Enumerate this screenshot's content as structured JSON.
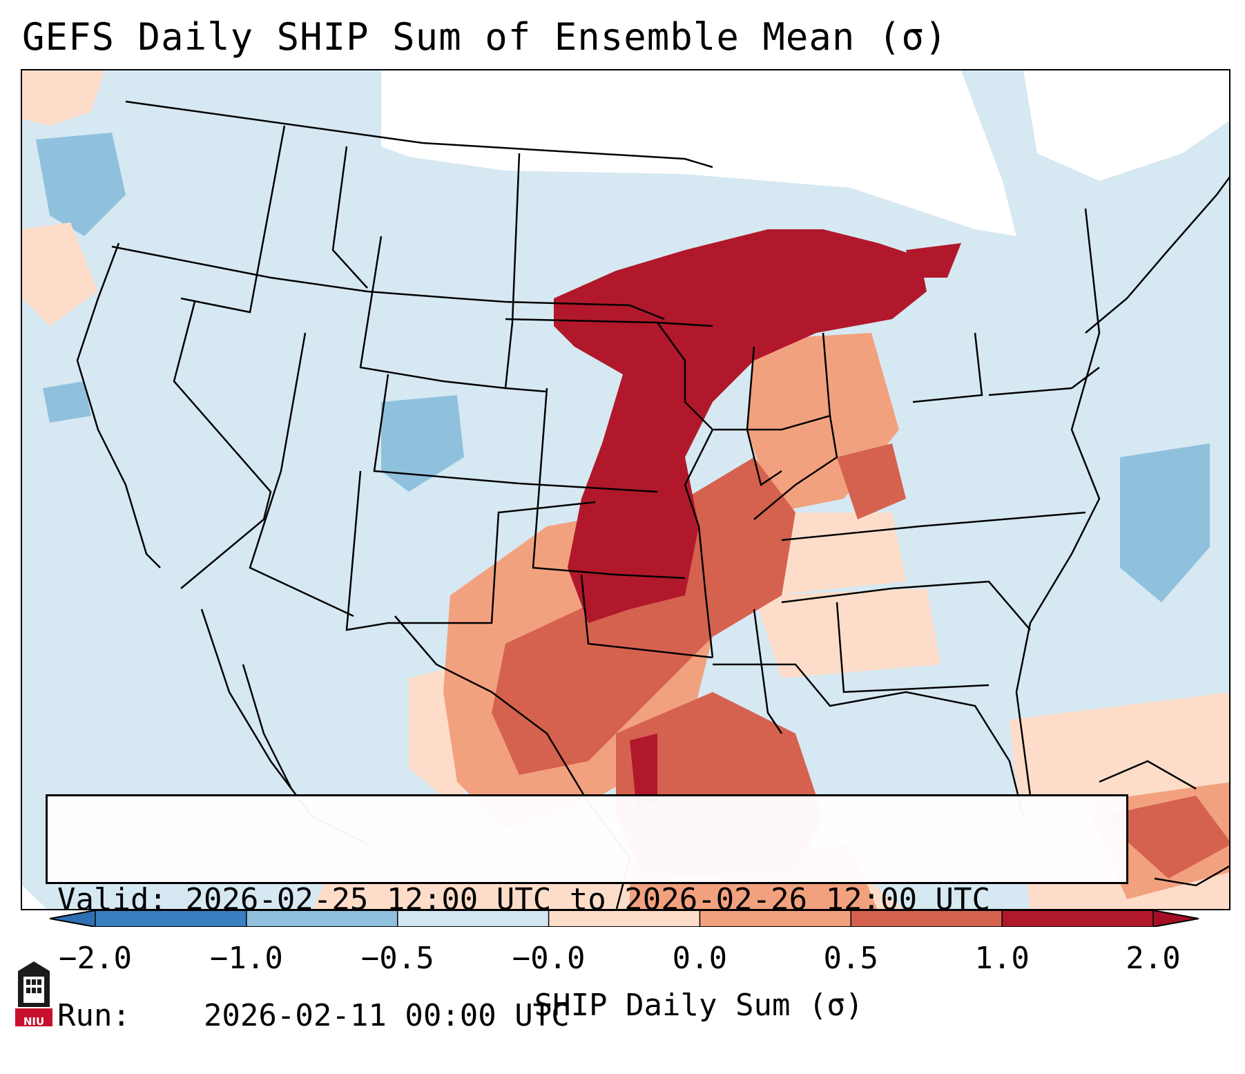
{
  "title": "GEFS Daily SHIP Sum of Ensemble Mean (σ)",
  "info": {
    "valid_label": "Valid:",
    "valid_value": "2026-02-25 12:00 UTC to 2026-02-26 12:00 UTC",
    "run_label": "Run:",
    "run_value": "2026-02-11 00:00 UTC"
  },
  "colorbar": {
    "label": "SHIP Daily Sum (σ)",
    "ticks": [
      "−2.0",
      "−1.0",
      "−0.5",
      "−0.0",
      "0.0",
      "0.5",
      "1.0",
      "2.0"
    ],
    "colors": [
      "#3a7fbf",
      "#8fc1dd",
      "#d2e6f1",
      "#f4f5f6",
      "#fdddc9",
      "#f2a17f",
      "#d5624f",
      "#b1182b"
    ],
    "extend_low_color": "#2f6fb3",
    "extend_high_color": "#a50f26"
  },
  "map": {
    "background_value_color": "#d6e8f2",
    "regions": {
      "missing": "#ffffff",
      "lt_neg1": "#8fc1dd",
      "neg1_to_neg05": "#d2e6f1",
      "pos0_to_05": "#fdddc9",
      "pos05_to_1": "#f2a17f",
      "pos1_to_2": "#d5624f",
      "gt_2": "#b1182b"
    }
  },
  "logo": {
    "text": "NIU",
    "colors": {
      "shield": "#1b1b1b",
      "band": "#c8102e"
    }
  }
}
